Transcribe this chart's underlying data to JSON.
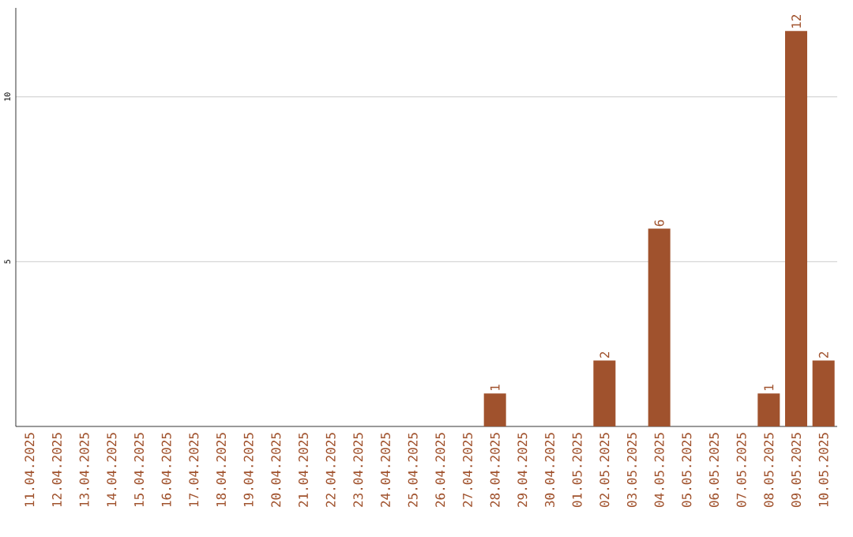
{
  "chart_data": {
    "type": "bar",
    "categories": [
      "11.04.2025",
      "12.04.2025",
      "13.04.2025",
      "14.04.2025",
      "15.04.2025",
      "16.04.2025",
      "17.04.2025",
      "18.04.2025",
      "19.04.2025",
      "20.04.2025",
      "21.04.2025",
      "22.04.2025",
      "23.04.2025",
      "24.04.2025",
      "25.04.2025",
      "26.04.2025",
      "27.04.2025",
      "28.04.2025",
      "29.04.2025",
      "30.04.2025",
      "01.05.2025",
      "02.05.2025",
      "03.05.2025",
      "04.05.2025",
      "05.05.2025",
      "06.05.2025",
      "07.05.2025",
      "08.05.2025",
      "09.05.2025",
      "10.05.2025"
    ],
    "values": [
      0,
      0,
      0,
      0,
      0,
      0,
      0,
      0,
      0,
      0,
      0,
      0,
      0,
      0,
      0,
      0,
      0,
      1,
      0,
      0,
      0,
      2,
      0,
      6,
      0,
      0,
      0,
      1,
      12,
      2
    ],
    "value_labels": [
      null,
      null,
      null,
      null,
      null,
      null,
      null,
      null,
      null,
      null,
      null,
      null,
      null,
      null,
      null,
      null,
      null,
      "1",
      null,
      null,
      null,
      "2",
      null,
      "6",
      null,
      null,
      null,
      "1",
      "12",
      "2"
    ],
    "color": "#a0522d",
    "ylim": [
      0,
      12.7
    ],
    "yticks": [
      5,
      10
    ],
    "grid": "y"
  }
}
